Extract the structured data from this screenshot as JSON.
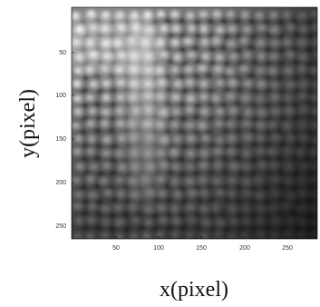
{
  "figure": {
    "xlabel": "x(pixel)",
    "ylabel": "y(pixel)",
    "xlim": [
      0,
      275
    ],
    "ylim": [
      0,
      265
    ],
    "x_ticks": [
      "50",
      "100",
      "150",
      "200",
      "250"
    ],
    "y_ticks": [
      "50",
      "100",
      "150",
      "200",
      "250"
    ],
    "colormap": "grayscale",
    "colors": {
      "frame": "#000000",
      "bright": "#f4f4f4",
      "dark": "#1e1e1e"
    }
  }
}
